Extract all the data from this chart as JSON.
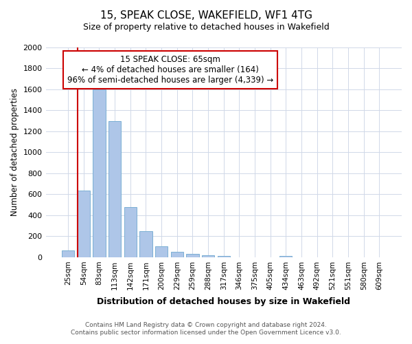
{
  "title": "15, SPEAK CLOSE, WAKEFIELD, WF1 4TG",
  "subtitle": "Size of property relative to detached houses in Wakefield",
  "xlabel": "Distribution of detached houses by size in Wakefield",
  "ylabel": "Number of detached properties",
  "bar_labels": [
    "25sqm",
    "54sqm",
    "83sqm",
    "113sqm",
    "142sqm",
    "171sqm",
    "200sqm",
    "229sqm",
    "259sqm",
    "288sqm",
    "317sqm",
    "346sqm",
    "375sqm",
    "405sqm",
    "434sqm",
    "463sqm",
    "492sqm",
    "521sqm",
    "551sqm",
    "580sqm",
    "609sqm"
  ],
  "bar_values": [
    65,
    635,
    1600,
    1300,
    475,
    250,
    105,
    55,
    30,
    20,
    15,
    0,
    0,
    0,
    15,
    0,
    0,
    0,
    0,
    0,
    0
  ],
  "bar_color": "#aec6e8",
  "bar_edge_color": "#7bafd4",
  "annotation_text1": "15 SPEAK CLOSE: 65sqm",
  "annotation_text2": "← 4% of detached houses are smaller (164)",
  "annotation_text3": "96% of semi-detached houses are larger (4,339) →",
  "annotation_box_color": "#ffffff",
  "annotation_border_color": "#cc0000",
  "vline_color": "#cc0000",
  "vline_x": 0.6,
  "ylim": [
    0,
    2000
  ],
  "yticks": [
    0,
    200,
    400,
    600,
    800,
    1000,
    1200,
    1400,
    1600,
    1800,
    2000
  ],
  "footer_line1": "Contains HM Land Registry data © Crown copyright and database right 2024.",
  "footer_line2": "Contains public sector information licensed under the Open Government Licence v3.0.",
  "bg_color": "#ffffff",
  "grid_color": "#d0d8e8"
}
